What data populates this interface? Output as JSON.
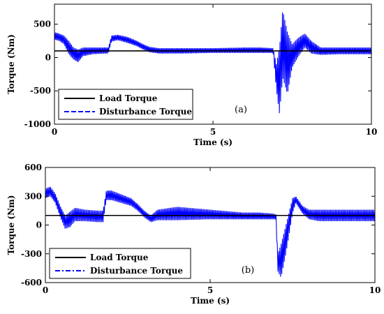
{
  "chart_data": [
    {
      "type": "line",
      "annotation": "(a)",
      "xlabel": "Time (s)",
      "ylabel": "Torque (Nm)",
      "xlim": [
        0,
        10
      ],
      "ylim": [
        -1000,
        800
      ],
      "xticks": [
        0,
        5,
        10
      ],
      "yticks": [
        500,
        0,
        -500,
        -1000
      ],
      "grid": false,
      "legend_position": "lower-left",
      "series": [
        {
          "name": "Load Torque",
          "color": "#000000",
          "dash": "solid",
          "x": [
            0,
            10
          ],
          "y": [
            100,
            100
          ]
        },
        {
          "name": "Disturbance Torque",
          "color": "#0000ff",
          "dash": "dashed",
          "band": true,
          "x": [
            0,
            0.15,
            0.3,
            0.45,
            0.6,
            0.75,
            0.9,
            1.2,
            1.6,
            1.7,
            1.8,
            2.0,
            2.3,
            2.6,
            2.8,
            3.0,
            3.3,
            4.0,
            5.0,
            6.0,
            6.5,
            6.9,
            7.0,
            7.1,
            7.2,
            7.35,
            7.5,
            7.7,
            7.9,
            8.1,
            8.4,
            9.0,
            9.2,
            9.4,
            9.6,
            10
          ],
          "y_upper": [
            380,
            360,
            330,
            250,
            150,
            120,
            150,
            150,
            150,
            150,
            330,
            340,
            310,
            250,
            200,
            160,
            140,
            140,
            140,
            150,
            150,
            140,
            -100,
            150,
            720,
            380,
            200,
            300,
            360,
            250,
            150,
            150,
            150,
            150,
            150,
            150
          ],
          "y_lower": [
            270,
            250,
            200,
            50,
            -30,
            -70,
            20,
            50,
            60,
            60,
            240,
            260,
            220,
            170,
            120,
            80,
            60,
            60,
            70,
            70,
            70,
            70,
            -480,
            -850,
            -300,
            -550,
            -150,
            20,
            150,
            60,
            40,
            50,
            50,
            50,
            50,
            50
          ]
        }
      ]
    },
    {
      "type": "line",
      "annotation": "(b)",
      "xlabel": "Time (s)",
      "ylabel": "Torque (Nm)",
      "xlim": [
        0,
        10
      ],
      "ylim": [
        -600,
        600
      ],
      "xticks": [
        0,
        5,
        10
      ],
      "yticks": [
        600,
        300,
        0,
        -300,
        -600
      ],
      "grid": false,
      "legend_position": "lower-left",
      "series": [
        {
          "name": "Load Torque",
          "color": "#000000",
          "dash": "solid",
          "x": [
            0,
            10
          ],
          "y": [
            100,
            100
          ]
        },
        {
          "name": "Disturbance Torque",
          "color": "#0000ff",
          "dash": "dash-dot",
          "band": true,
          "x": [
            0,
            0.15,
            0.3,
            0.45,
            0.6,
            0.75,
            0.9,
            1.2,
            1.6,
            1.75,
            1.85,
            2.0,
            2.3,
            2.6,
            2.8,
            3.0,
            3.2,
            3.4,
            4.0,
            5.0,
            6.0,
            6.5,
            6.9,
            7.0,
            7.05,
            7.15,
            7.3,
            7.5,
            7.6,
            7.8,
            8.0,
            8.3,
            9.0,
            10
          ],
          "y_upper": [
            380,
            400,
            330,
            200,
            100,
            140,
            180,
            160,
            150,
            150,
            360,
            360,
            320,
            280,
            220,
            150,
            100,
            160,
            190,
            160,
            130,
            130,
            120,
            110,
            -300,
            -200,
            0,
            280,
            300,
            200,
            160,
            160,
            160,
            160
          ],
          "y_lower": [
            280,
            300,
            230,
            80,
            -40,
            -20,
            40,
            40,
            30,
            30,
            260,
            260,
            230,
            200,
            150,
            80,
            30,
            50,
            50,
            60,
            60,
            60,
            60,
            60,
            -480,
            -550,
            -300,
            120,
            230,
            120,
            60,
            40,
            40,
            40
          ]
        }
      ]
    }
  ]
}
